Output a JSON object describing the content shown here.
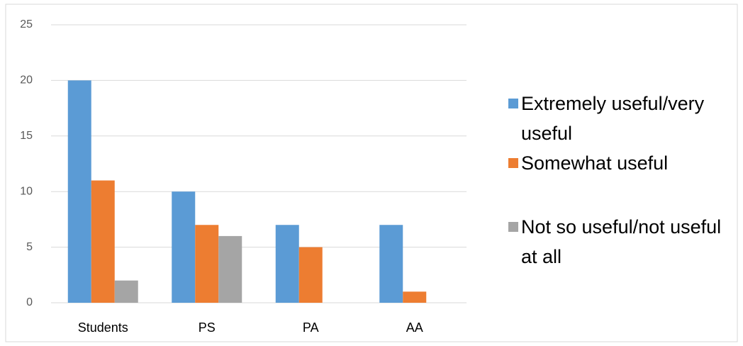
{
  "chart_data": {
    "type": "bar",
    "categories": [
      "Students",
      "PS",
      "PA",
      "AA"
    ],
    "series": [
      {
        "name": "Extremely useful/very useful",
        "color": "#5b9bd5",
        "values": [
          20,
          10,
          7,
          7
        ]
      },
      {
        "name": "Somewhat useful",
        "color": "#ed7d31",
        "values": [
          11,
          7,
          5,
          1
        ]
      },
      {
        "name": "Not so useful/not useful at all",
        "color": "#a5a5a5",
        "values": [
          2,
          6,
          0,
          0
        ]
      }
    ],
    "ylim": [
      0,
      25
    ],
    "yticks": [
      0,
      5,
      10,
      15,
      20,
      25
    ],
    "grid": true,
    "legend": "right"
  }
}
